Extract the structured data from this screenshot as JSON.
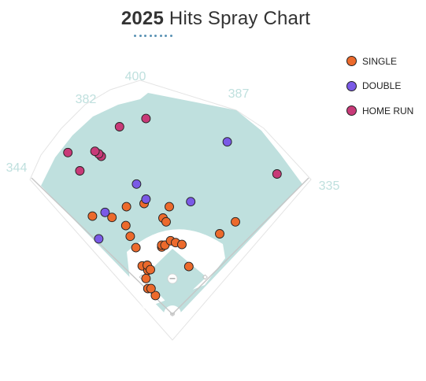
{
  "chart_data": {
    "type": "scatter",
    "title_year": "2025",
    "title_rest": "Hits Spray Chart",
    "fence_distances": [
      "344",
      "382",
      "400",
      "387",
      "335"
    ],
    "colors": {
      "single": "#ec6a2c",
      "double": "#7a5ae6",
      "home_run": "#c83a78",
      "outfield": "#bfe0de",
      "infield_dirt": "#ffffff",
      "distance_text": "#bfe0de"
    },
    "legend": [
      {
        "key": "single",
        "label": "SINGLE",
        "color": "#ec6a2c"
      },
      {
        "key": "double",
        "label": "DOUBLE",
        "color": "#7a5ae6"
      },
      {
        "key": "home_run",
        "label": "HOME RUN",
        "color": "#c83a78"
      }
    ],
    "series": [
      {
        "key": "single",
        "points": [
          [
            -127,
            153
          ],
          [
            -73,
            168
          ],
          [
            -96,
            151
          ],
          [
            -74,
            138
          ],
          [
            -45,
            173
          ],
          [
            -67,
            121
          ],
          [
            -58,
            103
          ],
          [
            -48,
            74
          ],
          [
            -39,
            67
          ],
          [
            -42,
            54
          ],
          [
            -39,
            38
          ],
          [
            -40,
            75
          ],
          [
            -35,
            68
          ],
          [
            -27,
            27
          ],
          [
            -34,
            38
          ],
          [
            -17,
            104
          ],
          [
            -17,
            107
          ],
          [
            -12,
            107
          ],
          [
            -15,
            150
          ],
          [
            -5,
            168
          ],
          [
            -10,
            144
          ],
          [
            -3,
            114
          ],
          [
            5,
            111
          ],
          [
            15,
            108
          ],
          [
            26,
            73
          ],
          [
            75,
            125
          ],
          [
            100,
            144
          ]
        ]
      },
      {
        "key": "double",
        "points": [
          [
            -117,
            117
          ],
          [
            -107,
            159
          ],
          [
            -42,
            180
          ],
          [
            -57,
            204
          ],
          [
            29,
            176
          ],
          [
            87,
            271
          ]
        ]
      },
      {
        "key": "home_run",
        "points": [
          [
            -166,
            254
          ],
          [
            -147,
            225
          ],
          [
            -113,
            248
          ],
          [
            -117,
            252
          ],
          [
            -123,
            256
          ],
          [
            -84,
            295
          ],
          [
            -42,
            308
          ],
          [
            166,
            220
          ]
        ]
      }
    ]
  }
}
